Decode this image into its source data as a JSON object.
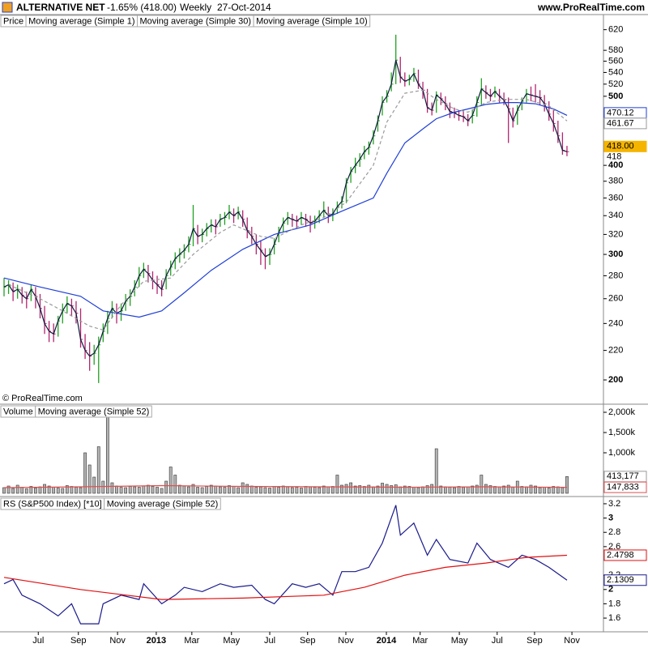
{
  "header": {
    "title": "ALTERNATIVE NET",
    "change": "-1.65% (418.00)",
    "period": "Weekly",
    "date": "27-Oct-2014",
    "source": "www.ProRealTime.com",
    "copyright": "© ProRealTime.com"
  },
  "chart_data": [
    {
      "type": "ohlc",
      "log_scale": true,
      "ylim": [
        185.4,
        651
      ],
      "xlim": [
        -0.9,
        133.1
      ],
      "yticks": [
        200,
        220,
        240,
        260,
        280,
        300,
        320,
        340,
        360,
        380,
        400,
        500,
        520,
        540,
        560,
        580,
        620
      ],
      "series": [
        {
          "name": "Price",
          "color": "#000000",
          "up_color": "#22a022",
          "down_color": "#b3246e",
          "label_fill": "#f5b400",
          "last_label": "418.00",
          "high": [
            278,
            276,
            274,
            272,
            270,
            266,
            272,
            270,
            264,
            254,
            242,
            240,
            246,
            256,
            262,
            260,
            258,
            252,
            232,
            226,
            224,
            230,
            240,
            250,
            258,
            256,
            256,
            264,
            268,
            276,
            288,
            292,
            290,
            284,
            280,
            276,
            286,
            294,
            302,
            306,
            310,
            318,
            352,
            330,
            326,
            332,
            336,
            336,
            342,
            344,
            352,
            348,
            350,
            346,
            338,
            328,
            320,
            314,
            306,
            306,
            316,
            328,
            338,
            344,
            342,
            340,
            344,
            342,
            340,
            340,
            346,
            356,
            350,
            348,
            356,
            362,
            384,
            398,
            410,
            416,
            426,
            432,
            448,
            470,
            500,
            510,
            540,
            610,
            568,
            540,
            536,
            548,
            545,
            524,
            512,
            490,
            508,
            506,
            500,
            490,
            482,
            478,
            476,
            472,
            478,
            500,
            530,
            518,
            512,
            516,
            512,
            506,
            498,
            482,
            486,
            498,
            512,
            516,
            520,
            510,
            502,
            492,
            478,
            462,
            445,
            426
          ],
          "low": [
            262,
            264,
            258,
            260,
            256,
            252,
            258,
            252,
            244,
            232,
            226,
            226,
            230,
            240,
            248,
            246,
            240,
            222,
            214,
            206,
            210,
            198,
            226,
            232,
            244,
            240,
            242,
            250,
            254,
            262,
            270,
            278,
            274,
            268,
            264,
            262,
            268,
            280,
            286,
            292,
            296,
            302,
            308,
            310,
            312,
            318,
            322,
            320,
            328,
            330,
            336,
            332,
            336,
            328,
            316,
            310,
            300,
            290,
            286,
            290,
            300,
            312,
            322,
            330,
            328,
            326,
            330,
            328,
            322,
            326,
            332,
            338,
            332,
            334,
            342,
            348,
            354,
            378,
            390,
            398,
            408,
            414,
            428,
            446,
            470,
            490,
            508,
            520,
            522,
            516,
            518,
            524,
            512,
            496,
            474,
            470,
            474,
            486,
            478,
            466,
            466,
            462,
            460,
            454,
            458,
            468,
            486,
            496,
            492,
            498,
            490,
            486,
            430,
            452,
            456,
            478,
            490,
            492,
            490,
            486,
            476,
            462,
            446,
            430,
            414,
            412
          ],
          "close": [
            270,
            272,
            266,
            268,
            263,
            260,
            268,
            262,
            252,
            240,
            234,
            232,
            242,
            250,
            256,
            254,
            248,
            228,
            220,
            216,
            218,
            224,
            234,
            244,
            252,
            248,
            250,
            258,
            262,
            270,
            280,
            286,
            282,
            276,
            272,
            268,
            280,
            288,
            296,
            300,
            304,
            310,
            326,
            318,
            320,
            326,
            330,
            328,
            336,
            338,
            344,
            340,
            344,
            336,
            324,
            318,
            310,
            304,
            298,
            300,
            310,
            322,
            332,
            338,
            336,
            334,
            338,
            336,
            332,
            334,
            340,
            346,
            340,
            342,
            350,
            356,
            378,
            392,
            400,
            408,
            418,
            424,
            440,
            462,
            490,
            500,
            520,
            562,
            532,
            525,
            528,
            538,
            520,
            510,
            482,
            478,
            502,
            496,
            488,
            476,
            474,
            470,
            468,
            462,
            470,
            490,
            512,
            506,
            500,
            508,
            500,
            494,
            480,
            462,
            478,
            492,
            504,
            502,
            500,
            498,
            488,
            472,
            458,
            440,
            420,
            418
          ]
        },
        {
          "name": "Moving average (Simple 1)",
          "color": "#0b1a3c",
          "last_label": "418",
          "label_box": false
        },
        {
          "name": "Moving average (Simple 30)",
          "color": "#1f3fd6",
          "last_label": "470.12",
          "x": [
            0,
            8,
            17,
            22,
            30,
            35,
            40,
            46,
            53,
            60,
            68,
            75,
            82,
            85,
            89,
            93,
            96,
            100,
            103,
            107,
            111,
            114,
            118,
            122,
            125
          ],
          "values": [
            278,
            270,
            262,
            250,
            245,
            250,
            265,
            285,
            305,
            320,
            330,
            345,
            360,
            390,
            430,
            450,
            465,
            475,
            480,
            487,
            490,
            490,
            488,
            480,
            470.12
          ]
        },
        {
          "name": "Moving average (Simple 10)",
          "color": "#9a9a9a",
          "dashed": true,
          "last_label": "461.67",
          "x": [
            1,
            8,
            14,
            19,
            22,
            26,
            31,
            37,
            42,
            48,
            51,
            57,
            60,
            66,
            71,
            76,
            82,
            85,
            89,
            93,
            96,
            100,
            103,
            107,
            111,
            116,
            121,
            125
          ],
          "values": [
            272,
            260,
            248,
            238,
            235,
            255,
            275,
            278,
            300,
            322,
            330,
            318,
            316,
            330,
            338,
            355,
            400,
            460,
            505,
            510,
            495,
            480,
            475,
            490,
            495,
            495,
            485,
            461.67
          ]
        }
      ]
    },
    {
      "type": "bar",
      "ylim": [
        -60,
        2180
      ],
      "xlim": [
        -0.9,
        133.1
      ],
      "yticks": [
        {
          "value": 1000,
          "label": "1,000k"
        },
        {
          "value": 1500,
          "label": "1,500k"
        },
        {
          "value": 2000,
          "label": "2,000k"
        }
      ],
      "series": [
        {
          "name": "Volume",
          "color": "#999999",
          "last_label": "413,177",
          "values": [
            140,
            180,
            120,
            200,
            150,
            110,
            170,
            130,
            160,
            220,
            180,
            150,
            130,
            120,
            190,
            170,
            150,
            140,
            1000,
            700,
            400,
            1150,
            300,
            2150,
            260,
            180,
            150,
            140,
            170,
            160,
            150,
            180,
            200,
            170,
            150,
            120,
            300,
            650,
            450,
            200,
            180,
            160,
            220,
            150,
            140,
            170,
            200,
            180,
            160,
            150,
            190,
            170,
            140,
            260,
            220,
            180,
            150,
            160,
            140,
            130,
            170,
            150,
            180,
            160,
            140,
            150,
            130,
            170,
            160,
            150,
            140,
            180,
            160,
            170,
            450,
            200,
            220,
            260,
            180,
            190,
            170,
            200,
            160,
            180,
            250,
            220,
            190,
            210,
            160,
            180,
            170,
            150,
            140,
            160,
            190,
            220,
            1100,
            180,
            160,
            150,
            140,
            170,
            150,
            160,
            180,
            200,
            450,
            220,
            190,
            170,
            160,
            180,
            200,
            150,
            300,
            170,
            160,
            200,
            180,
            140,
            150,
            130,
            170,
            160,
            140,
            413.177
          ]
        },
        {
          "name": "Moving average (Simple 52)",
          "color": "#e05050",
          "last_label": "147,833",
          "x": [
            0,
            17,
            35,
            53,
            71,
            89,
            107,
            125
          ],
          "values": [
            140,
            160,
            190,
            170,
            160,
            150,
            160,
            147.833
          ]
        }
      ]
    },
    {
      "type": "line",
      "ylim": [
        1.408,
        3.29
      ],
      "xlim": [
        -0.9,
        133.1
      ],
      "yticks": [
        1.6,
        1.8,
        2,
        2.2,
        2.6,
        2.8,
        3,
        3.2
      ],
      "xticks": [
        {
          "value": 7.6,
          "label": "Jul"
        },
        {
          "value": 16.5,
          "label": "Sep"
        },
        {
          "value": 25.2,
          "label": "Nov"
        },
        {
          "value": 33.8,
          "label": "2013"
        },
        {
          "value": 41.7,
          "label": "Mar"
        },
        {
          "value": 50.5,
          "label": "May"
        },
        {
          "value": 59,
          "label": "Jul"
        },
        {
          "value": 67.4,
          "label": "Sep"
        },
        {
          "value": 75.9,
          "label": "Nov"
        },
        {
          "value": 84.9,
          "label": "2014"
        },
        {
          "value": 92.4,
          "label": "Mar"
        },
        {
          "value": 101.1,
          "label": "May"
        },
        {
          "value": 109.5,
          "label": "Jul"
        },
        {
          "value": 117.8,
          "label": "Sep"
        },
        {
          "value": 126.1,
          "label": "Nov"
        }
      ],
      "series": [
        {
          "name": "RS (S&P500 Index) [*10]",
          "color": "#1a1a8c",
          "last_label": "2.1309",
          "x": [
            0,
            2,
            4,
            8,
            12,
            15,
            17,
            21,
            22,
            26,
            30,
            31,
            35,
            38,
            40,
            44,
            48,
            51,
            55,
            58,
            60,
            64,
            67,
            70,
            73,
            75,
            78,
            81,
            84,
            87,
            88,
            91,
            94,
            96,
            99,
            103,
            105,
            108,
            112,
            115,
            118,
            121,
            125
          ],
          "values": [
            2.08,
            2.14,
            1.92,
            1.8,
            1.63,
            1.8,
            1.52,
            1.52,
            1.8,
            1.92,
            1.86,
            2.08,
            1.8,
            1.92,
            2.03,
            1.97,
            2.08,
            2.03,
            2.06,
            1.86,
            1.8,
            2.08,
            2.03,
            2.08,
            1.92,
            2.25,
            2.25,
            2.31,
            2.65,
            3.18,
            2.76,
            2.93,
            2.48,
            2.7,
            2.42,
            2.37,
            2.65,
            2.42,
            2.31,
            2.48,
            2.42,
            2.31,
            2.1309
          ]
        },
        {
          "name": "Moving average (Simple 52)",
          "color": "#e01010",
          "last_label": "2.4798",
          "x": [
            0,
            17,
            35,
            53,
            71,
            80,
            89,
            98,
            107,
            116,
            125
          ],
          "values": [
            2.17,
            2.0,
            1.86,
            1.88,
            1.92,
            2.03,
            2.2,
            2.31,
            2.37,
            2.45,
            2.4798
          ]
        }
      ]
    }
  ]
}
